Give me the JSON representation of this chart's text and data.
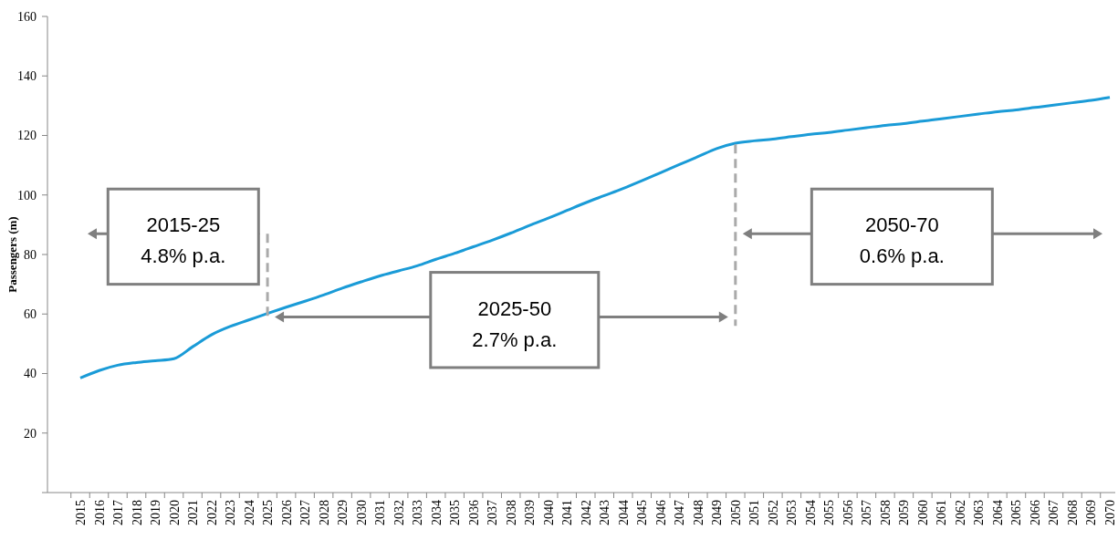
{
  "chart_data": {
    "type": "line",
    "ylabel": "Passengers (m)",
    "categories": [
      "2015",
      "2016",
      "2017",
      "2018",
      "2019",
      "2020",
      "2021",
      "2022",
      "2023",
      "2024",
      "2025",
      "2026",
      "2027",
      "2028",
      "2029",
      "2030",
      "2031",
      "2032",
      "2033",
      "2034",
      "2035",
      "2036",
      "2037",
      "2038",
      "2039",
      "2040",
      "2041",
      "2042",
      "2043",
      "2044",
      "2045",
      "2046",
      "2047",
      "2048",
      "2049",
      "2050",
      "2051",
      "2052",
      "2053",
      "2054",
      "2055",
      "2056",
      "2057",
      "2058",
      "2059",
      "2060",
      "2061",
      "2062",
      "2063",
      "2064",
      "2065",
      "2066",
      "2067",
      "2068",
      "2069",
      "2070"
    ],
    "series": [
      {
        "color": "#1a9bd7",
        "values": [
          38.5,
          41,
          42.8,
          43.7,
          44.3,
          45,
          49,
          53,
          55.8,
          58,
          60.2,
          62.3,
          64.3,
          66.4,
          68.7,
          70.8,
          72.8,
          74.5,
          76.2,
          78.4,
          80.4,
          82.6,
          84.8,
          87.2,
          89.8,
          92.2,
          94.8,
          97.4,
          99.8,
          102.2,
          104.8,
          107.5,
          110.2,
          112.9,
          115.6,
          117.4,
          118.2,
          118.8,
          119.6,
          120.4,
          121,
          121.8,
          122.6,
          123.4,
          124,
          124.8,
          125.6,
          126.4,
          127.2,
          128,
          128.6,
          129.4,
          130.2,
          131,
          131.8,
          132.8
        ]
      }
    ],
    "ylim": [
      0,
      160
    ],
    "yticks": [
      {
        "value": 0,
        "label": null
      },
      20,
      40,
      60,
      80,
      100,
      120,
      140,
      160
    ],
    "grid": false,
    "marker": "none",
    "line_style": "solid",
    "annotations": [
      "2015-25\n4.8% p.a.",
      "2025-50\n2.7% p.a.",
      "2050-70\n0.6% p.a."
    ]
  }
}
